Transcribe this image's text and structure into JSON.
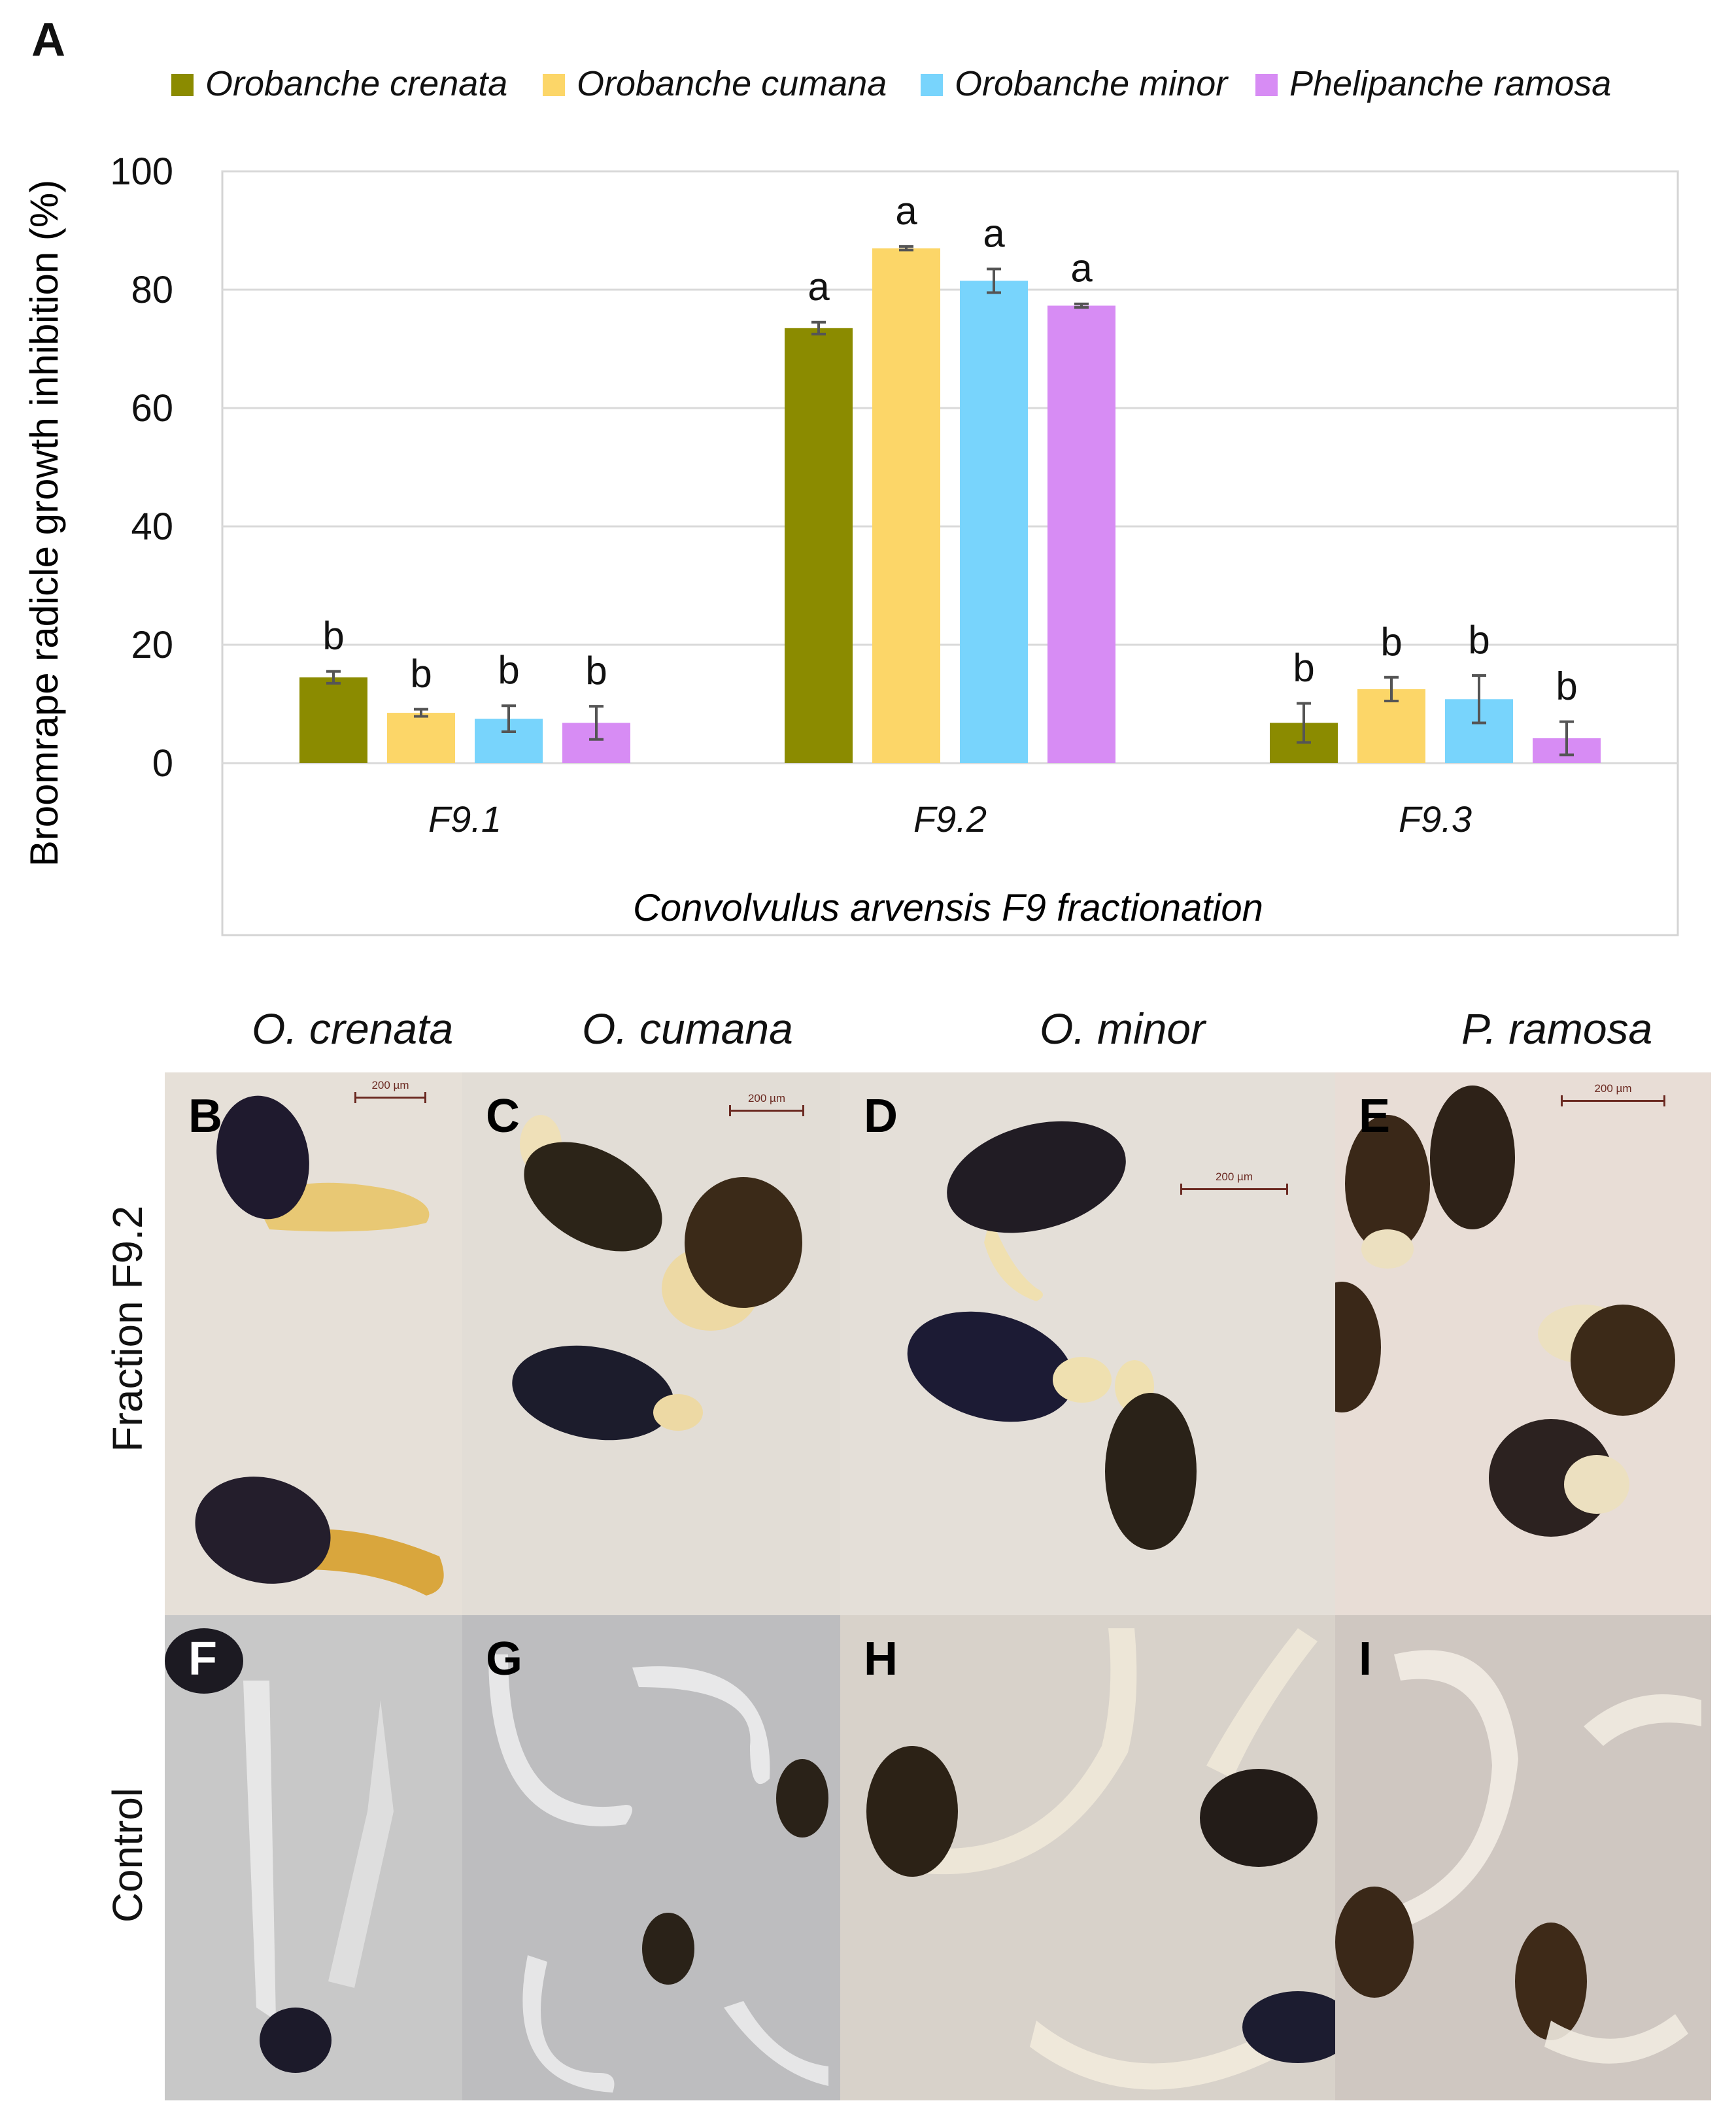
{
  "panel_a_label": "A",
  "chart_data": {
    "type": "bar",
    "title": "",
    "xlabel": "Convolvulus arvensis  F9 fractionation",
    "ylabel": "Broomrape radicle growth inhibition (%)",
    "ylim": [
      0,
      100
    ],
    "yticks": [
      0,
      20,
      40,
      60,
      80,
      100
    ],
    "grid": true,
    "legend_position": "top",
    "categories": [
      "F9.1",
      "F9.2",
      "F9.3"
    ],
    "series": [
      {
        "name": "Orobanche crenata",
        "color": "#8b8b00",
        "values": [
          14.5,
          73.5,
          6.8
        ],
        "errors": [
          1.0,
          1.0,
          3.3
        ],
        "letters": [
          "b",
          "a",
          "b"
        ]
      },
      {
        "name": "Orobanche cumana",
        "color": "#fcd668",
        "values": [
          8.5,
          87.0,
          12.5
        ],
        "errors": [
          0.6,
          0.3,
          2.0
        ],
        "letters": [
          "b",
          "a",
          "b"
        ]
      },
      {
        "name": "Orobanche minor",
        "color": "#78d4fc",
        "values": [
          7.5,
          81.5,
          10.8
        ],
        "errors": [
          2.2,
          2.0,
          4.0
        ],
        "letters": [
          "b",
          "a",
          "b"
        ]
      },
      {
        "name": "Phelipanche ramosa",
        "color": "#d78cf4",
        "values": [
          6.8,
          77.3,
          4.2
        ],
        "errors": [
          2.8,
          0.3,
          2.8
        ],
        "letters": [
          "b",
          "a",
          "b"
        ]
      }
    ]
  },
  "photo_grid": {
    "species_headers": [
      "O. crenata",
      "O. cumana",
      "O. minor",
      "P. ramosa"
    ],
    "row_labels": [
      "Fraction F9.2",
      "Control"
    ],
    "scale_text": "200 µm",
    "panels": [
      {
        "letter": "B"
      },
      {
        "letter": "C"
      },
      {
        "letter": "D"
      },
      {
        "letter": "E"
      },
      {
        "letter": "F"
      },
      {
        "letter": "G"
      },
      {
        "letter": "H"
      },
      {
        "letter": "I"
      }
    ]
  }
}
